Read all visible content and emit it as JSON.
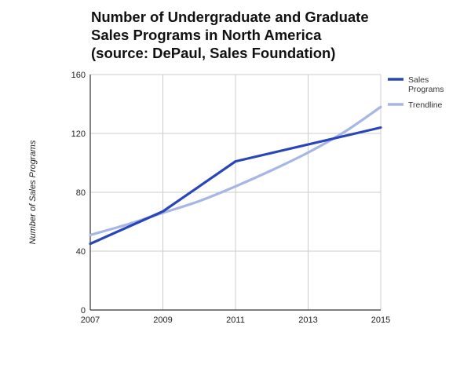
{
  "chart_data": {
    "type": "line",
    "title_lines": [
      "Number of Undergraduate and Graduate",
      "Sales Programs in North America",
      "(source: DePaul, Sales Foundation)"
    ],
    "xlabel": "",
    "ylabel": "Number of Sales Programs",
    "x": [
      2007,
      2008,
      2009,
      2010,
      2011,
      2012,
      2013,
      2014,
      2015
    ],
    "xticks": [
      "2007",
      "2009",
      "2011",
      "2013",
      "2015"
    ],
    "yticks": [
      "0",
      "40",
      "80",
      "120",
      "160"
    ],
    "xlim": [
      2007,
      2015
    ],
    "ylim": [
      0,
      160
    ],
    "grid": true,
    "legend_position": "right",
    "series": [
      {
        "name": "Sales Programs",
        "legend_lines": [
          "Sales",
          "Programs"
        ],
        "color": "#2846b8",
        "x": [
          2007,
          2009,
          2011,
          2015
        ],
        "values": [
          45,
          67,
          101,
          124
        ]
      },
      {
        "name": "Trendline",
        "legend_lines": [
          "Trendline"
        ],
        "color": "#a6b6e6",
        "x": [
          2007,
          2008,
          2009,
          2010,
          2011,
          2012,
          2013,
          2014,
          2015
        ],
        "values": [
          51,
          58,
          66,
          74,
          84,
          95,
          107,
          121,
          138
        ]
      }
    ]
  }
}
